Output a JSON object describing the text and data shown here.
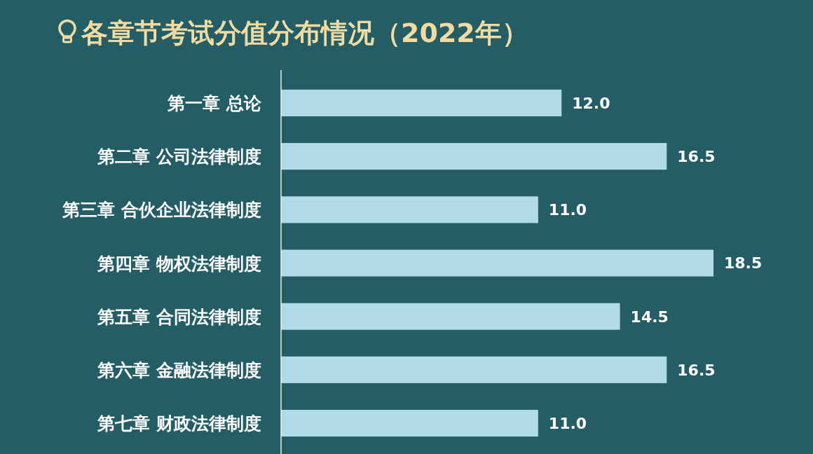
{
  "chart_data": {
    "type": "bar",
    "orientation": "horizontal",
    "title": "各章节考试分值分布情况（2022年）",
    "categories": [
      "第一章 总论",
      "第二章 公司法律制度",
      "第三章 合伙企业法律制度",
      "第四章 物权法律制度",
      "第五章 合同法律制度",
      "第六章 金融法律制度",
      "第七章 财政法律制度"
    ],
    "values": [
      12.0,
      16.5,
      11.0,
      18.5,
      14.5,
      16.5,
      11.0
    ],
    "value_labels": [
      "12.0",
      "16.5",
      "11.0",
      "18.5",
      "14.5",
      "16.5",
      "11.0"
    ],
    "color": "#b1dbe8",
    "tick_labels": "y"
  }
}
